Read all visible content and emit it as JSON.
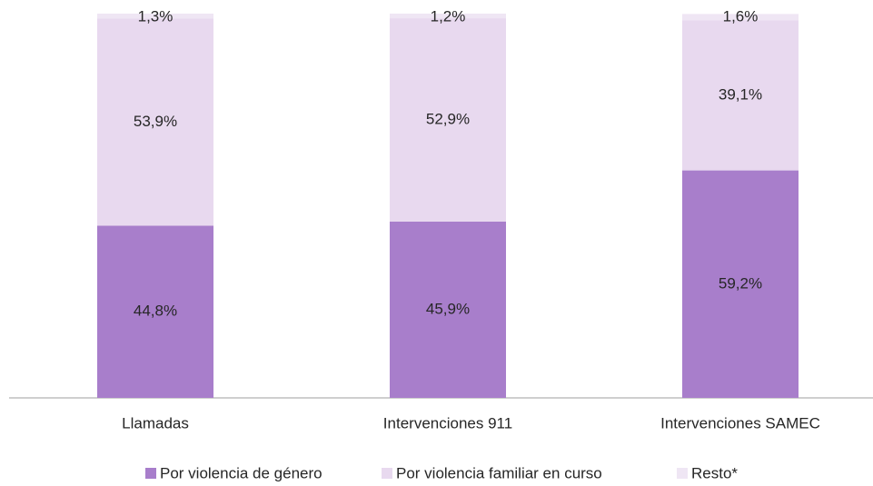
{
  "chart_data": {
    "type": "stacked_bar",
    "categories": [
      "Llamadas",
      "Intervenciones 911",
      "Intervenciones SAMEC"
    ],
    "series": [
      {
        "name": "Por violencia de género",
        "color": "#a87ecb",
        "values": [
          44.8,
          45.9,
          59.2
        ],
        "value_labels": [
          "44,8%",
          "45,9%",
          "59,2%"
        ]
      },
      {
        "name": "Por violencia familiar en curso",
        "color": "#e8d9ef",
        "values": [
          53.9,
          52.9,
          39.1
        ],
        "value_labels": [
          "53,9%",
          "52,9%",
          "39,1%"
        ]
      },
      {
        "name": "Resto*",
        "color": "#efe6f4",
        "values": [
          1.3,
          1.2,
          1.6
        ],
        "value_labels": [
          "1,3%",
          "1,2%",
          "1,6%"
        ]
      }
    ],
    "ylim": [
      0,
      100
    ]
  }
}
